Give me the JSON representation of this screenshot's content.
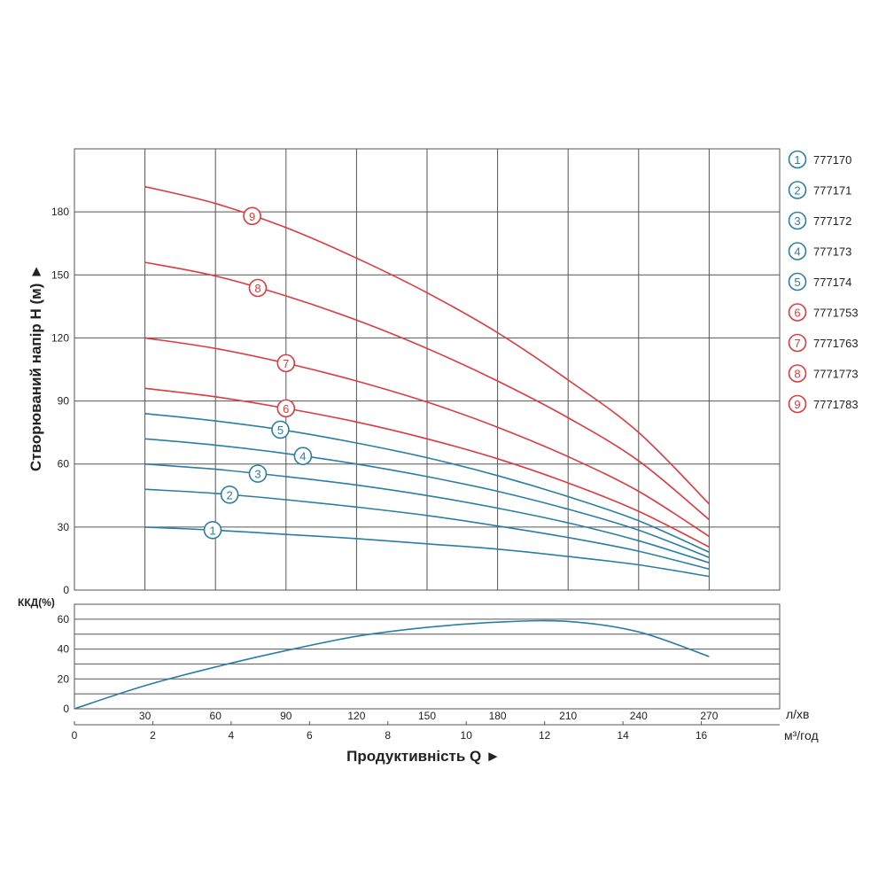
{
  "chart_data": [
    {
      "type": "line",
      "ylabel": "Створюваний напір H (м) ►",
      "xlabel": "Продуктивність Q ►",
      "x_unit_primary": "л/хв",
      "x_unit_secondary": "м³/год",
      "x_ticks_primary": [
        "30",
        "60",
        "90",
        "120",
        "150",
        "180",
        "210",
        "240",
        "270"
      ],
      "x_ticks_secondary": [
        "0",
        "2",
        "4",
        "6",
        "8",
        "10",
        "12",
        "14",
        "16"
      ],
      "y_ticks": [
        "0",
        "30",
        "60",
        "90",
        "120",
        "150",
        "180"
      ],
      "xlim": [
        0,
        300
      ],
      "ylim": [
        0,
        210
      ],
      "grid": true,
      "legend_position": "right",
      "series": [
        {
          "marker": "1",
          "name": "777170",
          "color": "#2a7ea3",
          "x": [
            30,
            60,
            90,
            120,
            150,
            180,
            210,
            240,
            270
          ],
          "y": [
            30,
            28.5,
            26.5,
            24.5,
            22,
            19.5,
            16,
            12,
            6.5
          ]
        },
        {
          "marker": "2",
          "name": "777171",
          "color": "#2a7ea3",
          "x": [
            30,
            60,
            90,
            120,
            150,
            180,
            210,
            240,
            270
          ],
          "y": [
            48,
            46,
            43,
            39.5,
            35.5,
            30.5,
            25,
            18.5,
            10
          ]
        },
        {
          "marker": "3",
          "name": "777172",
          "color": "#2a7ea3",
          "x": [
            30,
            60,
            90,
            120,
            150,
            180,
            210,
            240,
            270
          ],
          "y": [
            60,
            57.5,
            54,
            50,
            45,
            39,
            32,
            23.5,
            13
          ]
        },
        {
          "marker": "4",
          "name": "777173",
          "color": "#2a7ea3",
          "x": [
            30,
            60,
            90,
            120,
            150,
            180,
            210,
            240,
            270
          ],
          "y": [
            72,
            69,
            65,
            60,
            54,
            47,
            38.5,
            28.5,
            15.5
          ]
        },
        {
          "marker": "5",
          "name": "777174",
          "color": "#2a7ea3",
          "x": [
            30,
            60,
            90,
            120,
            150,
            180,
            210,
            240,
            270
          ],
          "y": [
            84,
            80.5,
            76,
            70,
            63,
            54.5,
            44.5,
            33,
            18
          ]
        },
        {
          "marker": "6",
          "name": "7771753",
          "color": "#e0393e",
          "x": [
            30,
            60,
            90,
            120,
            150,
            180,
            210,
            240,
            270
          ],
          "y": [
            96,
            92,
            86.5,
            80,
            72,
            62.5,
            51,
            37.5,
            20.5
          ]
        },
        {
          "marker": "7",
          "name": "7771763",
          "color": "#e0393e",
          "x": [
            30,
            60,
            90,
            120,
            150,
            180,
            210,
            240,
            270
          ],
          "y": [
            120,
            115,
            108,
            99.5,
            89.5,
            77.5,
            63.5,
            47,
            25.5
          ]
        },
        {
          "marker": "8",
          "name": "7771773",
          "color": "#e0393e",
          "x": [
            30,
            60,
            90,
            120,
            150,
            180,
            210,
            240,
            270
          ],
          "y": [
            156,
            149.5,
            140,
            128.5,
            115,
            99.5,
            82,
            61.5,
            33.5
          ]
        },
        {
          "marker": "9",
          "name": "7771783",
          "color": "#e0393e",
          "x": [
            30,
            60,
            90,
            120,
            150,
            180,
            210,
            240,
            270
          ],
          "y": [
            192,
            184,
            172.5,
            158,
            141.5,
            122.5,
            100,
            75,
            41
          ]
        }
      ]
    },
    {
      "type": "line",
      "ylabel": "ККД(%)",
      "y_ticks": [
        "0",
        "20",
        "40",
        "60"
      ],
      "xlim": [
        0,
        300
      ],
      "ylim": [
        0,
        70
      ],
      "grid": true,
      "series": [
        {
          "color": "#2a7ea3",
          "x": [
            0,
            30,
            60,
            90,
            120,
            150,
            180,
            210,
            240,
            270
          ],
          "y": [
            0,
            15.5,
            28,
            39,
            48.5,
            54.5,
            58,
            58.5,
            51.5,
            35
          ]
        }
      ]
    }
  ]
}
